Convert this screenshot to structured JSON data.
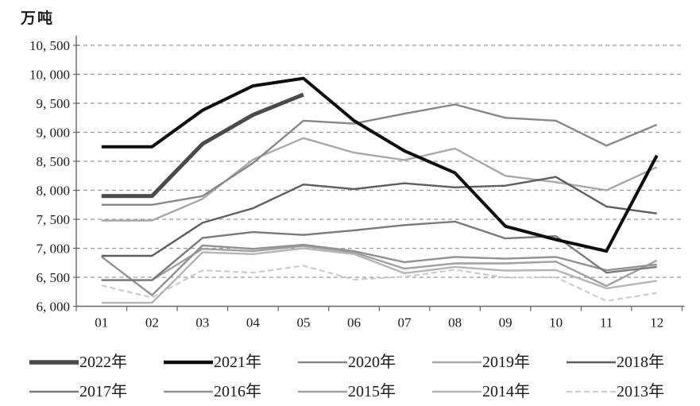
{
  "chart": {
    "unit_label": "万吨",
    "y_ticks": [
      "10, 500",
      "10, 000",
      "9, 500",
      "9, 000",
      "8, 500",
      "8, 000",
      "7, 500",
      "7, 000",
      "6, 500",
      "6, 000"
    ],
    "x_ticks": [
      "01",
      "02",
      "03",
      "04",
      "05",
      "06",
      "07",
      "08",
      "09",
      "10",
      "11",
      "12"
    ],
    "grid_color": "#999999",
    "axis_color": "#666666"
  },
  "chart_data": {
    "type": "line",
    "title": "",
    "ylabel": "万吨",
    "xlabel": "",
    "ylim": [
      6000,
      10500
    ],
    "y_tick_step": 500,
    "grid": "horizontal-dashed",
    "legend_position": "bottom",
    "x": [
      "01",
      "02",
      "03",
      "04",
      "05",
      "06",
      "07",
      "08",
      "09",
      "10",
      "11",
      "12"
    ],
    "series": [
      {
        "name": "2022年",
        "color": "#4a4a4a",
        "width": 5,
        "dash": null,
        "values": [
          7900,
          7900,
          8800,
          9300,
          9650,
          null,
          null,
          null,
          null,
          null,
          null,
          null
        ]
      },
      {
        "name": "2021年",
        "color": "#0d0d0d",
        "width": 4,
        "dash": null,
        "values": [
          8750,
          8750,
          9380,
          9800,
          9930,
          9200,
          8680,
          8300,
          7380,
          7150,
          6950,
          8600
        ]
      },
      {
        "name": "2020年",
        "color": "#878787",
        "width": 2.4,
        "dash": null,
        "values": [
          7750,
          7750,
          7900,
          8470,
          9200,
          9150,
          9320,
          9480,
          9250,
          9200,
          8770,
          9130
        ]
      },
      {
        "name": "2019年",
        "color": "#a8a8a8",
        "width": 2.4,
        "dash": null,
        "values": [
          7480,
          7480,
          7850,
          8530,
          8900,
          8650,
          8520,
          8720,
          8250,
          8140,
          8000,
          8400
        ]
      },
      {
        "name": "2018年",
        "color": "#5e5e5e",
        "width": 2.4,
        "dash": null,
        "values": [
          6870,
          6870,
          7440,
          7690,
          8100,
          8020,
          8120,
          8050,
          8080,
          8230,
          7720,
          7600
        ]
      },
      {
        "name": "2017年",
        "color": "#7a7a7a",
        "width": 2.4,
        "dash": null,
        "values": [
          6450,
          6450,
          7180,
          7280,
          7230,
          7310,
          7400,
          7460,
          7170,
          7210,
          6580,
          6680
        ]
      },
      {
        "name": "2016年",
        "color": "#919191",
        "width": 2.4,
        "dash": null,
        "values": [
          6855,
          6190,
          7050,
          6990,
          7060,
          6950,
          6760,
          6850,
          6820,
          6850,
          6620,
          6720
        ]
      },
      {
        "name": "2015年",
        "color": "#a0a0a0",
        "width": 2.4,
        "dash": null,
        "values": [
          6450,
          6450,
          6990,
          6950,
          7040,
          6930,
          6650,
          6740,
          6740,
          6770,
          6350,
          6790
        ]
      },
      {
        "name": "2014年",
        "color": "#b5b5b5",
        "width": 2.4,
        "dash": null,
        "values": [
          6060,
          6060,
          6930,
          6900,
          7000,
          6900,
          6570,
          6680,
          6615,
          6625,
          6310,
          6440
        ]
      },
      {
        "name": "2013年",
        "color": "#cccccc",
        "width": 2.2,
        "dash": "7,4",
        "values": [
          6360,
          6150,
          6620,
          6580,
          6700,
          6460,
          6510,
          6630,
          6495,
          6500,
          6090,
          6230
        ]
      }
    ]
  },
  "legend": {
    "row1": [
      "2022年",
      "2021年",
      "2020年",
      "2019年",
      "2018年"
    ],
    "row2": [
      "2017年",
      "2016年",
      "2015年",
      "2014年",
      "2013年"
    ]
  }
}
